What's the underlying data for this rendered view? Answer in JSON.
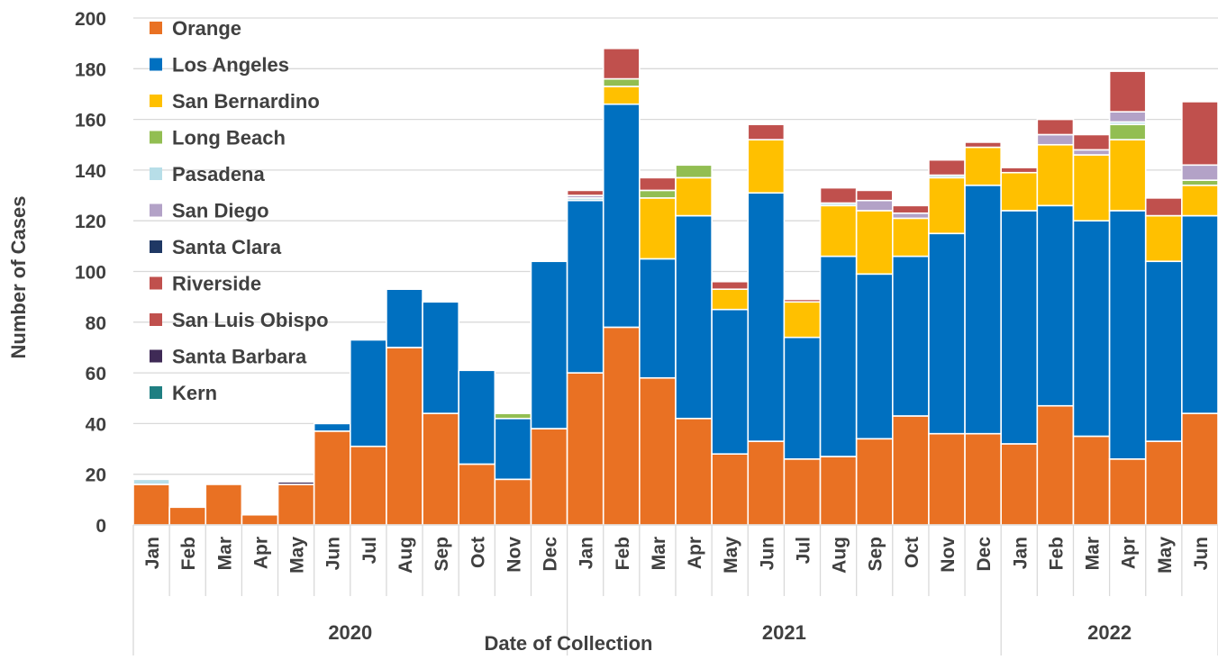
{
  "chart_data": {
    "type": "bar",
    "stacked": true,
    "title": "",
    "xlabel": "Date of Collection",
    "ylabel": "Number of Cases",
    "ylim": [
      0,
      200
    ],
    "yticks": [
      0,
      20,
      40,
      60,
      80,
      100,
      120,
      140,
      160,
      180,
      200
    ],
    "grid": true,
    "legend_position": "top-left",
    "categories": [
      "Jan",
      "Feb",
      "Mar",
      "Apr",
      "May",
      "Jun",
      "Jul",
      "Aug",
      "Sep",
      "Oct",
      "Nov",
      "Dec",
      "Jan",
      "Feb",
      "Mar",
      "Apr",
      "May",
      "Jun",
      "Jul",
      "Aug",
      "Sep",
      "Oct",
      "Nov",
      "Dec",
      "Jan",
      "Feb",
      "Mar",
      "Apr",
      "May",
      "Jun"
    ],
    "year_groups": [
      {
        "label": "2020",
        "count": 12
      },
      {
        "label": "2021",
        "count": 12
      },
      {
        "label": "2022",
        "count": 6
      }
    ],
    "series": [
      {
        "name": "Orange",
        "color": "#E97123",
        "values": [
          16,
          7,
          16,
          4,
          16,
          37,
          31,
          70,
          44,
          24,
          18,
          38,
          60,
          78,
          58,
          42,
          28,
          33,
          26,
          27,
          34,
          43,
          36,
          36,
          32,
          47,
          35,
          26,
          33,
          44
        ]
      },
      {
        "name": "Los Angeles",
        "color": "#0070C0",
        "values": [
          0,
          0,
          0,
          0,
          0,
          3,
          42,
          23,
          44,
          37,
          24,
          66,
          68,
          88,
          47,
          80,
          57,
          98,
          48,
          79,
          65,
          63,
          79,
          98,
          92,
          79,
          85,
          98,
          71,
          78
        ]
      },
      {
        "name": "San Bernardino",
        "color": "#FFC000",
        "values": [
          0,
          0,
          0,
          0,
          0,
          0,
          0,
          0,
          0,
          0,
          0,
          0,
          0,
          7,
          24,
          15,
          8,
          21,
          14,
          20,
          25,
          15,
          22,
          15,
          15,
          24,
          26,
          28,
          18,
          12
        ]
      },
      {
        "name": "Long Beach",
        "color": "#92BE52",
        "values": [
          0,
          0,
          0,
          0,
          0,
          0,
          0,
          0,
          0,
          0,
          2,
          0,
          0,
          3,
          3,
          5,
          0,
          0,
          0,
          0,
          0,
          0,
          0,
          0,
          0,
          0,
          0,
          6,
          0,
          2
        ]
      },
      {
        "name": "Pasadena",
        "color": "#B7DEE8",
        "values": [
          2,
          0,
          0,
          0,
          0,
          0,
          0,
          0,
          0,
          0,
          0,
          0,
          1,
          0,
          0,
          0,
          0,
          0,
          0,
          1,
          0,
          0,
          1,
          0,
          0,
          0,
          0,
          1,
          0,
          0
        ]
      },
      {
        "name": "San Diego",
        "color": "#B3A2C7",
        "values": [
          0,
          0,
          0,
          0,
          0,
          0,
          0,
          0,
          0,
          0,
          0,
          0,
          1,
          0,
          0,
          0,
          0,
          0,
          0,
          0,
          4,
          2,
          0,
          0,
          0,
          4,
          2,
          4,
          0,
          6
        ]
      },
      {
        "name": "Santa Clara",
        "color": "#1F3864",
        "values": [
          0,
          0,
          0,
          0,
          0,
          0,
          0,
          0,
          0,
          0,
          0,
          0,
          0,
          0,
          0,
          0,
          0,
          0,
          0,
          0,
          0,
          0,
          0,
          0,
          0,
          0,
          0,
          0,
          0,
          0
        ]
      },
      {
        "name": "Riverside",
        "color": "#C0504D",
        "values": [
          0,
          0,
          0,
          0,
          0,
          0,
          0,
          0,
          0,
          0,
          0,
          0,
          2,
          12,
          5,
          0,
          3,
          6,
          1,
          6,
          4,
          3,
          6,
          2,
          2,
          6,
          6,
          16,
          7,
          25
        ]
      },
      {
        "name": "San Luis Obispo",
        "color": "#C0504D",
        "values": [
          0,
          0,
          0,
          0,
          0,
          0,
          0,
          0,
          0,
          0,
          0,
          0,
          0,
          0,
          0,
          0,
          0,
          0,
          0,
          0,
          0,
          0,
          0,
          0,
          0,
          0,
          0,
          0,
          0,
          0
        ]
      },
      {
        "name": "Santa Barbara",
        "color": "#3F2A56",
        "values": [
          0,
          0,
          0,
          0,
          1,
          0,
          0,
          0,
          0,
          0,
          0,
          0,
          0,
          0,
          0,
          0,
          0,
          0,
          0,
          0,
          0,
          0,
          0,
          0,
          0,
          0,
          0,
          0,
          0,
          0
        ]
      },
      {
        "name": "Kern",
        "color": "#1F7F82",
        "values": [
          0,
          0,
          0,
          0,
          0,
          0,
          0,
          0,
          0,
          0,
          0,
          0,
          0,
          0,
          0,
          0,
          0,
          0,
          0,
          0,
          0,
          0,
          0,
          0,
          0,
          0,
          0,
          0,
          0,
          0
        ]
      }
    ]
  }
}
